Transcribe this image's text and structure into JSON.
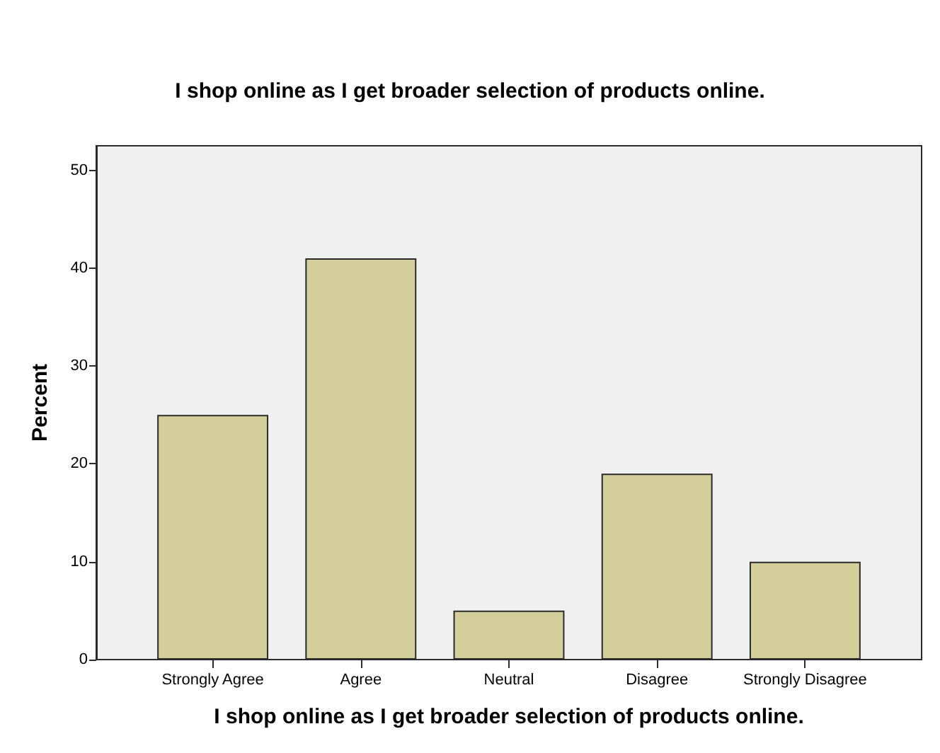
{
  "chart_data": {
    "type": "bar",
    "title": "I shop online as I get broader selection of products online.",
    "xlabel": "I shop online as I get broader selection of products online.",
    "ylabel": "Percent",
    "categories": [
      "Strongly Agree",
      "Agree",
      "Neutral",
      "Disagree",
      "Strongly Disagree"
    ],
    "values": [
      25,
      41,
      5,
      19,
      10
    ],
    "color": "#d3ce9a",
    "ylim": [
      0,
      52.5
    ],
    "yticks": [
      0,
      10,
      20,
      30,
      40,
      50
    ]
  }
}
